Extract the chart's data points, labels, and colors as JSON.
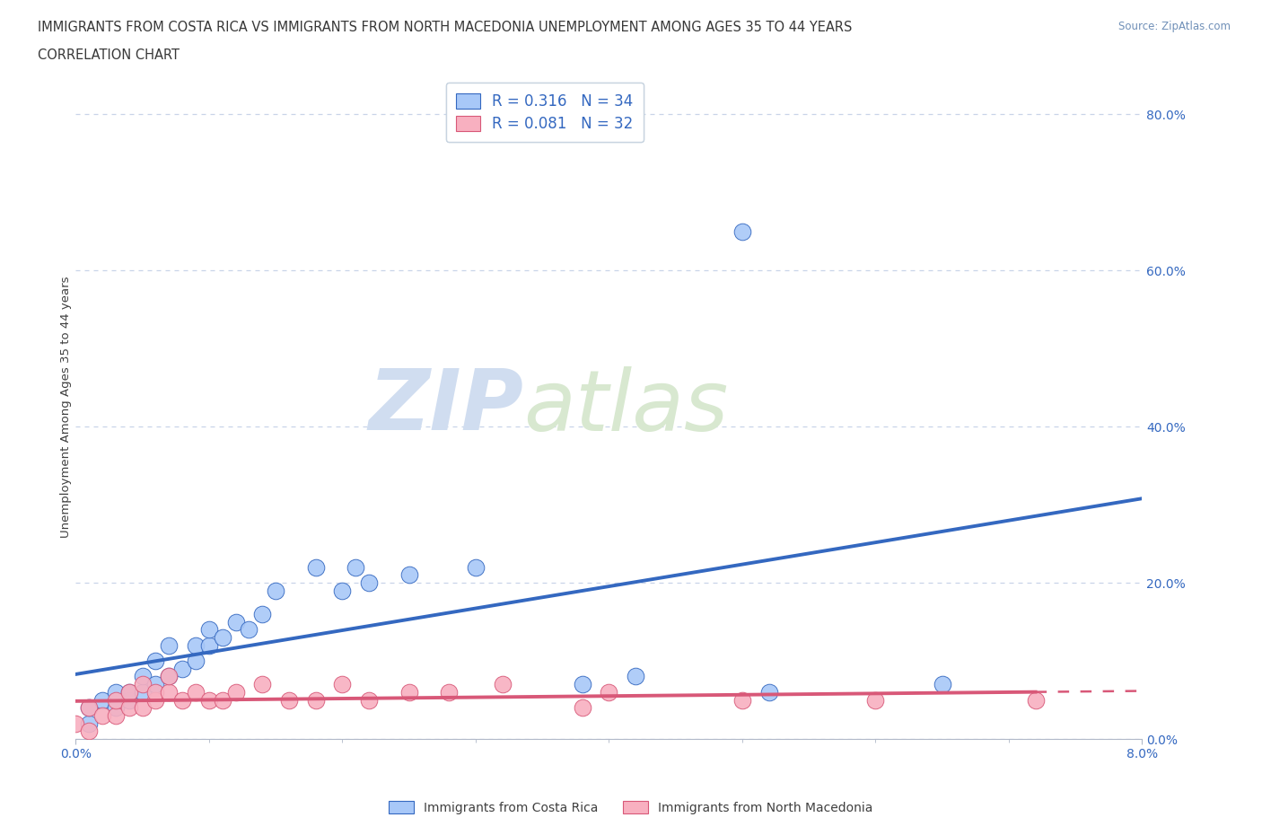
{
  "title_line1": "IMMIGRANTS FROM COSTA RICA VS IMMIGRANTS FROM NORTH MACEDONIA UNEMPLOYMENT AMONG AGES 35 TO 44 YEARS",
  "title_line2": "CORRELATION CHART",
  "source_text": "Source: ZipAtlas.com",
  "ylabel": "Unemployment Among Ages 35 to 44 years",
  "xlim": [
    0.0,
    0.08
  ],
  "ylim": [
    0.0,
    0.85
  ],
  "yticks": [
    0.0,
    0.2,
    0.4,
    0.6,
    0.8
  ],
  "ytick_labels": [
    "0.0%",
    "20.0%",
    "40.0%",
    "60.0%",
    "80.0%"
  ],
  "color_cr": "#a8c8f8",
  "color_cr_line": "#3468c0",
  "color_nm": "#f8b0c0",
  "color_nm_line": "#d85878",
  "R_cr": 0.316,
  "N_cr": 34,
  "R_nm": 0.081,
  "N_nm": 32,
  "watermark_zip": "ZIP",
  "watermark_atlas": "atlas",
  "background_color": "#ffffff",
  "grid_color": "#c8d4e8",
  "costa_rica_x": [
    0.001,
    0.001,
    0.002,
    0.003,
    0.003,
    0.004,
    0.004,
    0.005,
    0.005,
    0.006,
    0.006,
    0.007,
    0.007,
    0.008,
    0.009,
    0.009,
    0.01,
    0.01,
    0.011,
    0.012,
    0.013,
    0.014,
    0.015,
    0.018,
    0.02,
    0.021,
    0.022,
    0.025,
    0.03,
    0.038,
    0.042,
    0.05,
    0.052,
    0.065
  ],
  "costa_rica_y": [
    0.02,
    0.04,
    0.05,
    0.04,
    0.06,
    0.05,
    0.06,
    0.06,
    0.08,
    0.07,
    0.1,
    0.08,
    0.12,
    0.09,
    0.1,
    0.12,
    0.12,
    0.14,
    0.13,
    0.15,
    0.14,
    0.16,
    0.19,
    0.22,
    0.19,
    0.22,
    0.2,
    0.21,
    0.22,
    0.07,
    0.08,
    0.65,
    0.06,
    0.07
  ],
  "north_mac_x": [
    0.0,
    0.001,
    0.001,
    0.002,
    0.003,
    0.003,
    0.004,
    0.004,
    0.005,
    0.005,
    0.006,
    0.006,
    0.007,
    0.007,
    0.008,
    0.009,
    0.01,
    0.011,
    0.012,
    0.014,
    0.016,
    0.018,
    0.02,
    0.022,
    0.025,
    0.028,
    0.032,
    0.038,
    0.04,
    0.05,
    0.06,
    0.072
  ],
  "north_mac_y": [
    0.02,
    0.01,
    0.04,
    0.03,
    0.03,
    0.05,
    0.04,
    0.06,
    0.04,
    0.07,
    0.05,
    0.06,
    0.06,
    0.08,
    0.05,
    0.06,
    0.05,
    0.05,
    0.06,
    0.07,
    0.05,
    0.05,
    0.07,
    0.05,
    0.06,
    0.06,
    0.07,
    0.04,
    0.06,
    0.05,
    0.05,
    0.05
  ],
  "title_fontsize": 10.5,
  "label_fontsize": 9.5,
  "tick_fontsize": 10
}
